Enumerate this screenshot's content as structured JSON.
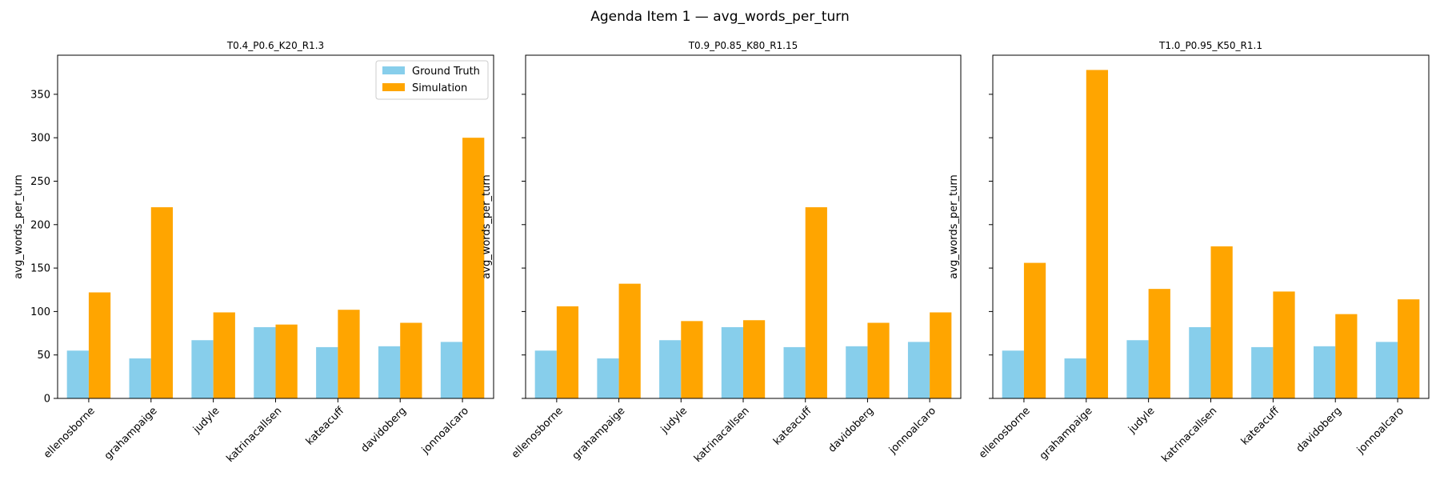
{
  "figure_title": "Agenda Item 1 — avg_words_per_turn",
  "colors": {
    "ground_truth": "#87ceeb",
    "simulation": "#ffa500"
  },
  "legend": {
    "placement": "top-right",
    "in_panel": 0
  },
  "chart_data": [
    {
      "type": "bar",
      "title": "T0.4_P0.6_K20_R1.3",
      "xlabel": "",
      "ylabel": "avg_words_per_turn",
      "ylim": [
        0,
        395
      ],
      "yticks": [
        0,
        50,
        100,
        150,
        200,
        250,
        300,
        350
      ],
      "grid": false,
      "categories": [
        "ellenosborne",
        "grahampaige",
        "judyle",
        "katrinacallsen",
        "kateacuff",
        "davidoberg",
        "jonnoalcaro"
      ],
      "series": [
        {
          "name": "Ground Truth",
          "values": [
            55,
            46,
            67,
            82,
            59,
            60,
            65
          ]
        },
        {
          "name": "Simulation",
          "values": [
            122,
            220,
            99,
            85,
            102,
            87,
            300
          ]
        }
      ]
    },
    {
      "type": "bar",
      "title": "T0.9_P0.85_K80_R1.15",
      "xlabel": "",
      "ylabel": "avg_words_per_turn",
      "ylim": [
        0,
        395
      ],
      "yticks": [
        0,
        50,
        100,
        150,
        200,
        250,
        300,
        350
      ],
      "grid": false,
      "categories": [
        "ellenosborne",
        "grahampaige",
        "judyle",
        "katrinacallsen",
        "kateacuff",
        "davidoberg",
        "jonnoalcaro"
      ],
      "series": [
        {
          "name": "Ground Truth",
          "values": [
            55,
            46,
            67,
            82,
            59,
            60,
            65
          ]
        },
        {
          "name": "Simulation",
          "values": [
            106,
            132,
            89,
            90,
            220,
            87,
            99
          ]
        }
      ]
    },
    {
      "type": "bar",
      "title": "T1.0_P0.95_K50_R1.1",
      "xlabel": "",
      "ylabel": "avg_words_per_turn",
      "ylim": [
        0,
        395
      ],
      "yticks": [
        0,
        50,
        100,
        150,
        200,
        250,
        300,
        350
      ],
      "grid": false,
      "categories": [
        "ellenosborne",
        "grahampaige",
        "judyle",
        "katrinacallsen",
        "kateacuff",
        "davidoberg",
        "jonnoalcaro"
      ],
      "series": [
        {
          "name": "Ground Truth",
          "values": [
            55,
            46,
            67,
            82,
            59,
            60,
            65
          ]
        },
        {
          "name": "Simulation",
          "values": [
            156,
            378,
            126,
            175,
            123,
            97,
            114
          ]
        }
      ]
    }
  ]
}
